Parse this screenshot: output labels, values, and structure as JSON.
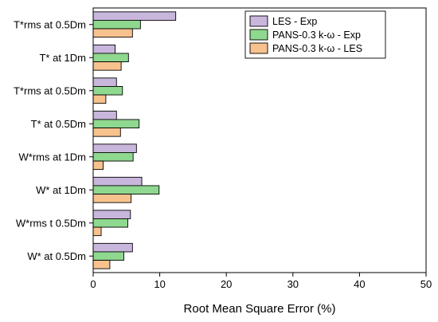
{
  "chart_data": {
    "type": "bar",
    "orientation": "horizontal",
    "categories": [
      "T*rms at 0.5Dm",
      "T* at 1Dm",
      "T*rms at 0.5Dm",
      "T* at 0.5Dm",
      "W*rms at 1Dm",
      "W* at 1Dm",
      "W*rms t 0.5Dm",
      "W* at 0.5Dm"
    ],
    "series": [
      {
        "name": "LES - Exp",
        "color": "#c8b6dc",
        "values": [
          12.4,
          3.3,
          3.5,
          3.5,
          6.5,
          7.3,
          5.6,
          5.9
        ]
      },
      {
        "name": "PANS-0.3 k-ω - Exp",
        "color": "#8fd88f",
        "values": [
          7.1,
          5.3,
          4.4,
          6.9,
          6.0,
          9.9,
          5.2,
          4.6
        ]
      },
      {
        "name": "PANS-0.3 k-ω - LES",
        "color": "#f8c28e",
        "values": [
          5.9,
          4.2,
          1.9,
          4.1,
          1.5,
          5.7,
          1.2,
          2.5
        ]
      }
    ],
    "xlabel": "Root Mean Square Error (%)",
    "ylabel": "",
    "xlim": [
      0,
      50
    ],
    "xticks": [
      0,
      10,
      20,
      30,
      40,
      50
    ],
    "grid": false,
    "legend_position": "top-right"
  }
}
